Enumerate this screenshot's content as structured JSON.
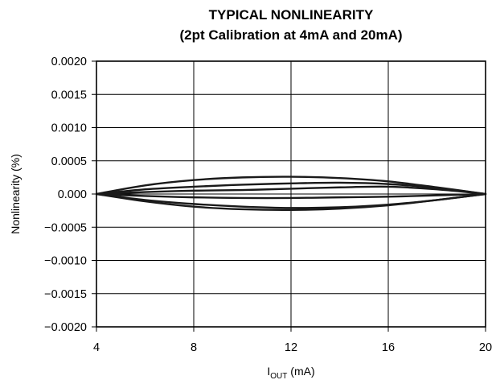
{
  "chart_data": {
    "type": "line",
    "title": "TYPICAL NONLINEARITY",
    "subtitle": "(2pt Calibration at 4mA and 20mA)",
    "xlabel": {
      "main": "I",
      "sub": "OUT",
      "unit": " (mA)"
    },
    "ylabel": "Nonlinearity (%)",
    "xlim": [
      4,
      20
    ],
    "ylim": [
      -0.002,
      0.002
    ],
    "x_ticks": [
      4,
      8,
      12,
      16,
      20
    ],
    "x_tick_labels": [
      "4",
      "8",
      "12",
      "16",
      "20"
    ],
    "y_ticks": [
      0.002,
      0.0015,
      0.001,
      0.0005,
      0,
      -0.0005,
      -0.001,
      -0.0015,
      -0.002
    ],
    "y_tick_labels": [
      "0.0020",
      "0.0015",
      "0.0010",
      "0.0005",
      "0.000",
      "−0.0005",
      "−0.0010",
      "−0.0015",
      "−0.0020"
    ],
    "grid": true,
    "x": [
      4,
      6,
      8,
      10,
      12,
      14,
      16,
      18,
      20
    ],
    "series": [
      {
        "values": [
          0,
          0.00013,
          0.00021,
          0.00025,
          0.00026,
          0.00024,
          0.00019,
          0.0001,
          0
        ]
      },
      {
        "values": [
          0,
          7e-05,
          0.00011,
          0.00014,
          0.00016,
          0.00017,
          0.00015,
          9e-05,
          0
        ]
      },
      {
        "values": [
          0,
          3e-05,
          5e-05,
          6e-05,
          8e-05,
          0.0001,
          0.00011,
          7e-05,
          0
        ]
      },
      {
        "values": [
          0,
          -3e-05,
          -5e-05,
          -6e-05,
          -6e-05,
          -5e-05,
          -4e-05,
          -2e-05,
          0
        ]
      },
      {
        "values": [
          0,
          -0.00011,
          -0.00019,
          -0.00023,
          -0.00024,
          -0.00022,
          -0.00017,
          -9e-05,
          0
        ]
      },
      {
        "values": [
          0,
          -9e-05,
          -0.00015,
          -0.00019,
          -0.00021,
          -0.0002,
          -0.00016,
          -9e-05,
          0
        ]
      }
    ]
  }
}
